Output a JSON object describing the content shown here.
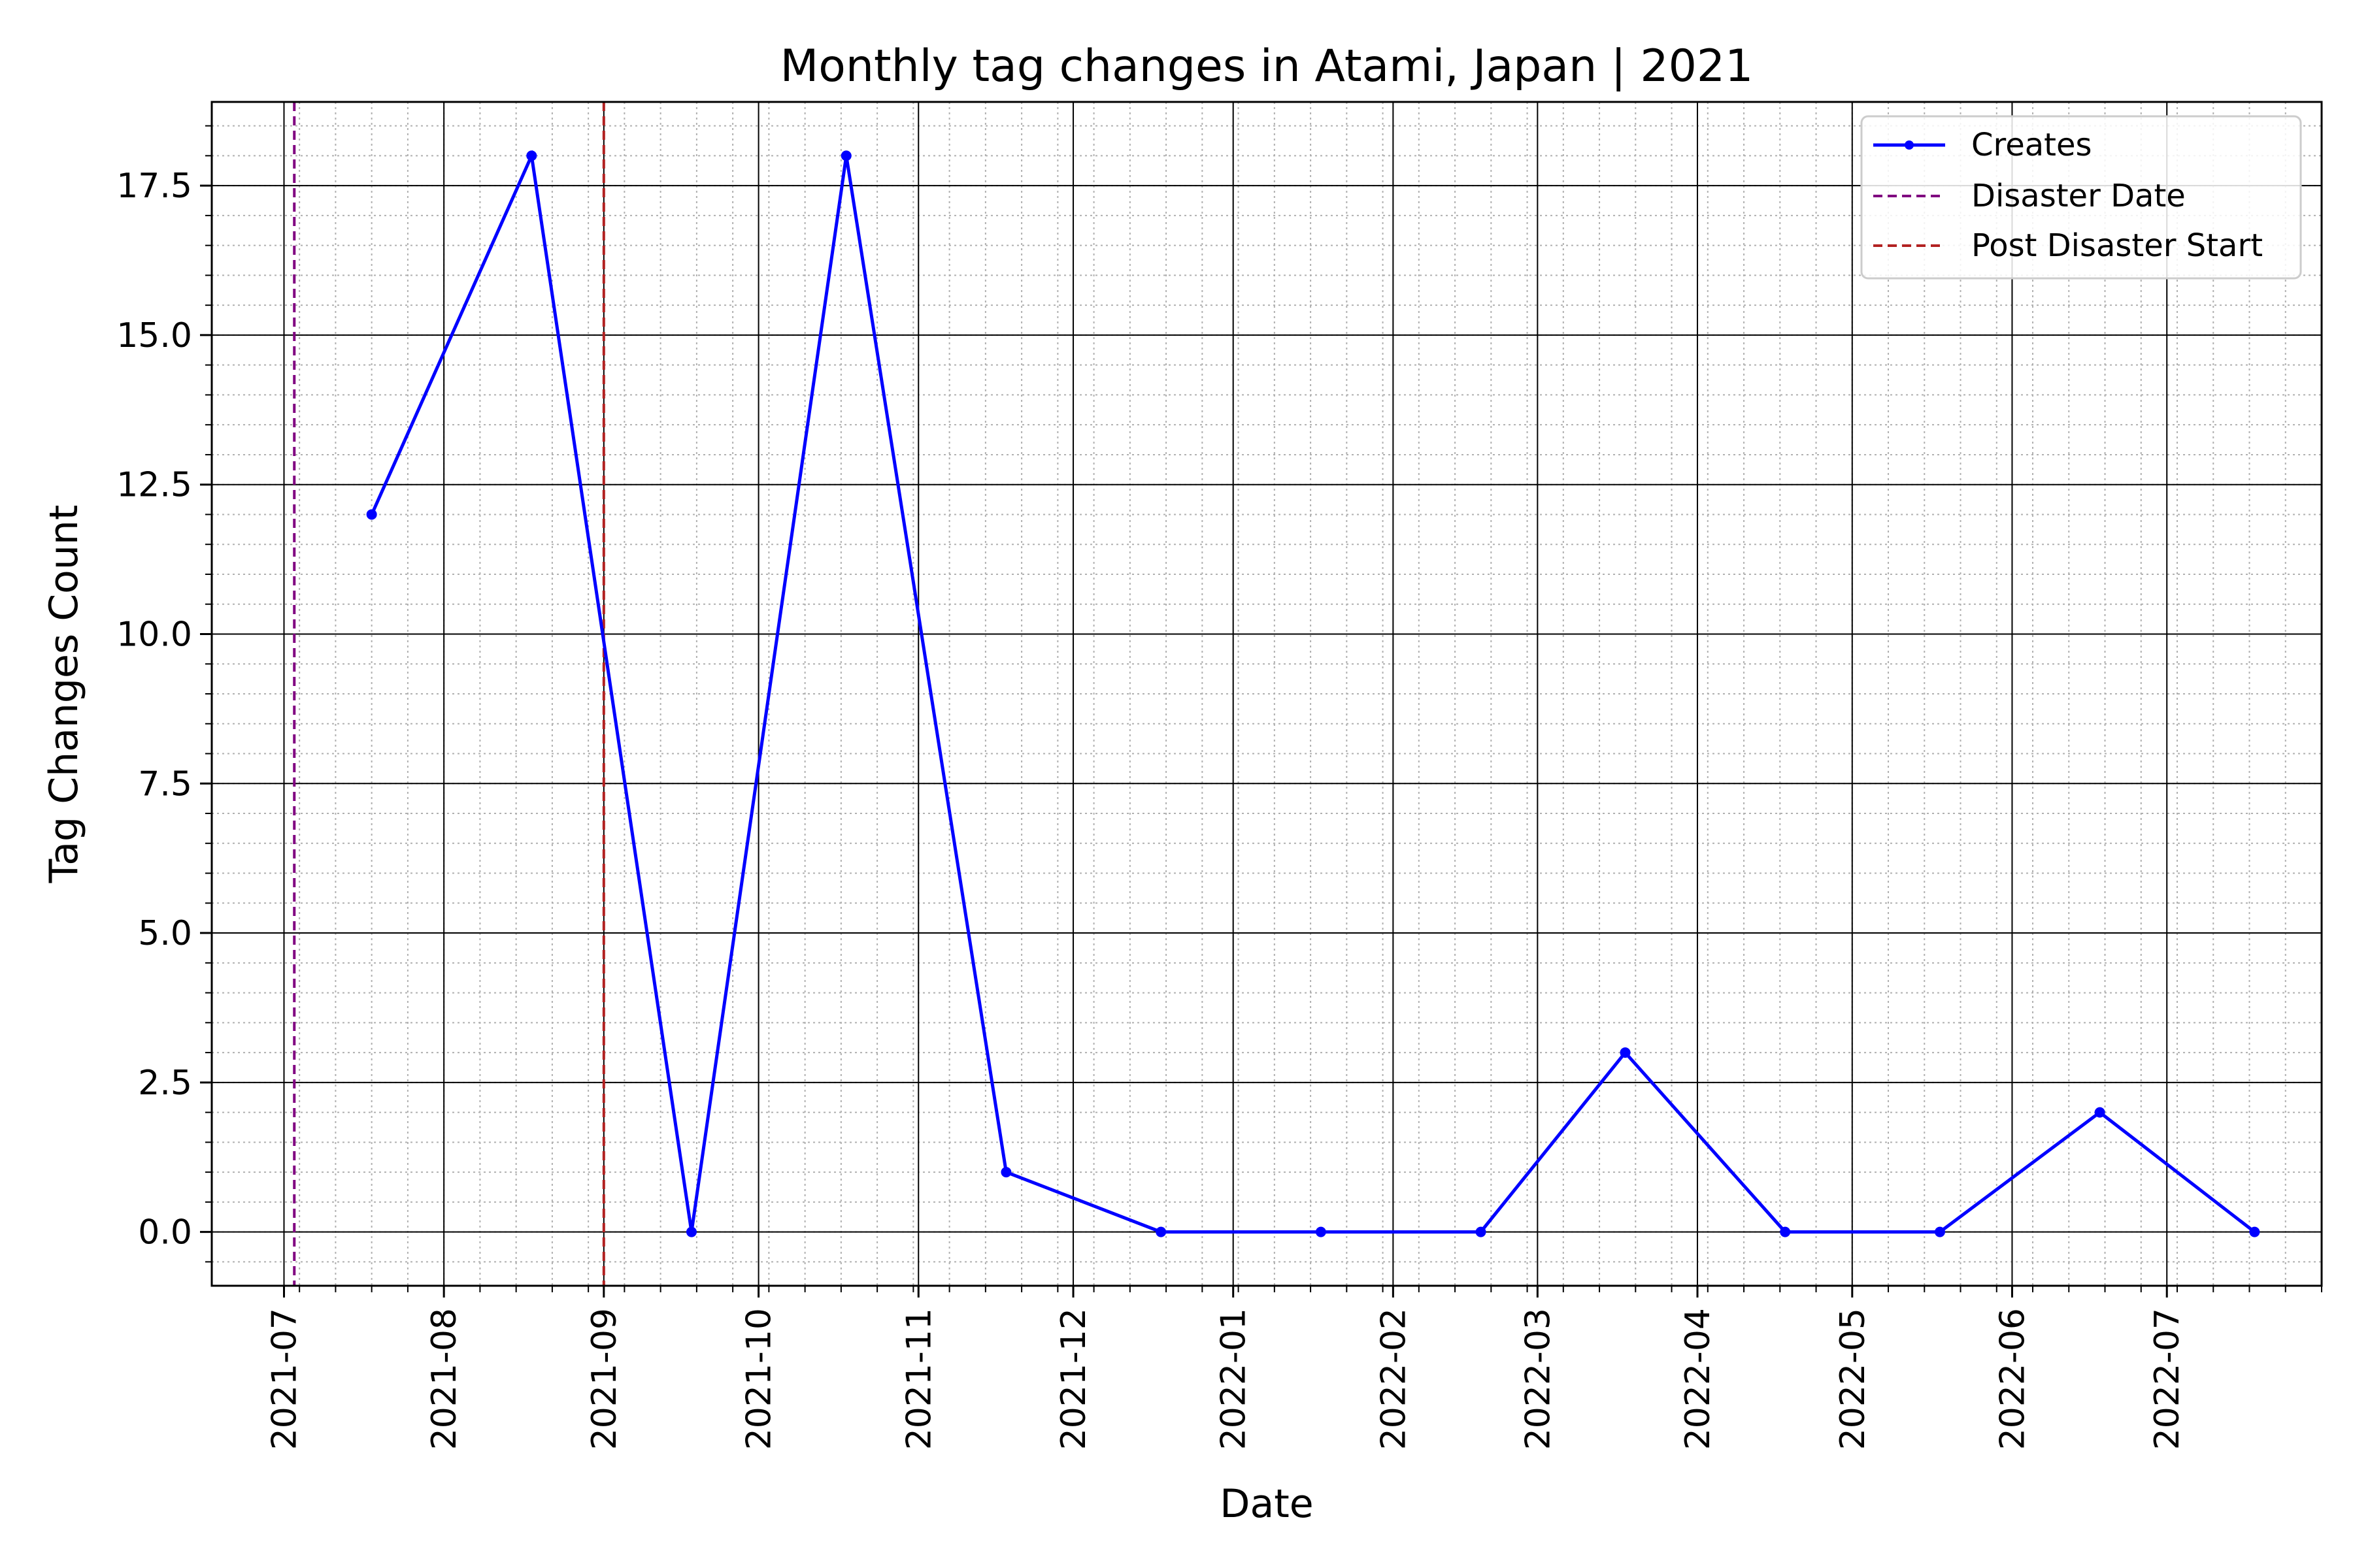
{
  "chart_data": {
    "type": "line",
    "title": "Monthly tag changes in Atami, Japan | 2021",
    "xlabel": "Date",
    "ylabel": "Tag Changes Count",
    "x_axis": "date",
    "xlim": [
      "2021-07-01",
      "2022-07-31"
    ],
    "ylim": [
      -0.9,
      18.9
    ],
    "x_ticks": [
      "2021-07",
      "2021-08",
      "2021-09",
      "2021-10",
      "2021-11",
      "2021-12",
      "2022-01",
      "2022-02",
      "2022-03",
      "2022-04",
      "2022-05",
      "2022-06",
      "2022-07"
    ],
    "y_ticks": [
      "0.0",
      "2.5",
      "5.0",
      "7.5",
      "10.0",
      "12.5",
      "15.0",
      "17.5"
    ],
    "grid": true,
    "legend_position": "top-right",
    "series": [
      {
        "name": "Creates",
        "color": "#0000ff",
        "marker": "circle",
        "x": [
          "2021-07-18",
          "2021-08-18",
          "2021-09-18",
          "2021-10-18",
          "2021-11-18",
          "2021-12-18",
          "2022-01-18",
          "2022-02-18",
          "2022-03-18",
          "2022-04-18",
          "2022-05-18",
          "2022-06-18",
          "2022-07-18"
        ],
        "values": [
          12,
          18,
          0,
          18,
          1,
          0,
          0,
          0,
          3,
          0,
          0,
          2,
          0
        ]
      }
    ],
    "vlines": [
      {
        "name": "Disaster Date",
        "date": "2021-07-03",
        "color": "#800080",
        "style": "dashed"
      },
      {
        "name": "Post Disaster Start",
        "date": "2021-09-01",
        "color": "#b22222",
        "style": "dashed"
      }
    ]
  }
}
